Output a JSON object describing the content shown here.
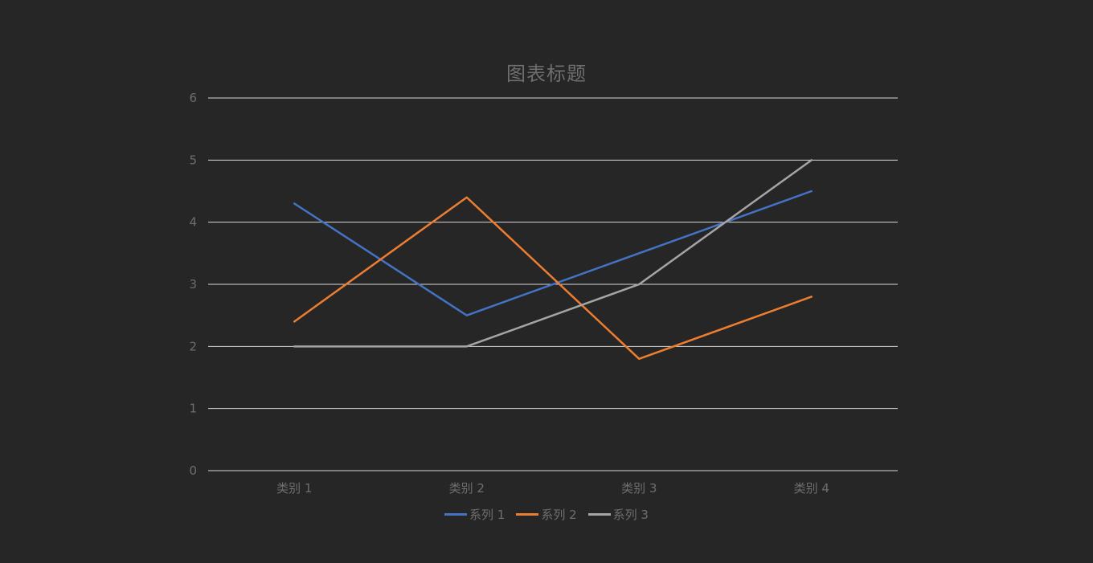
{
  "chart_data": {
    "type": "line",
    "title": "图表标题",
    "categories": [
      "类别 1",
      "类别 2",
      "类别 3",
      "类别 4"
    ],
    "ylim": [
      0,
      6
    ],
    "yticks": [
      "0",
      "1",
      "2",
      "3",
      "4",
      "5",
      "6"
    ],
    "grid": true,
    "legend_position": "bottom",
    "series": [
      {
        "name": "系列 1",
        "values": [
          4.3,
          2.5,
          3.5,
          4.5
        ],
        "color": "#4472C4"
      },
      {
        "name": "系列 2",
        "values": [
          2.4,
          4.4,
          1.8,
          2.8
        ],
        "color": "#ED7D31"
      },
      {
        "name": "系列 3",
        "values": [
          2.0,
          2.0,
          3.0,
          5.0
        ],
        "color": "#A5A5A5"
      }
    ]
  }
}
